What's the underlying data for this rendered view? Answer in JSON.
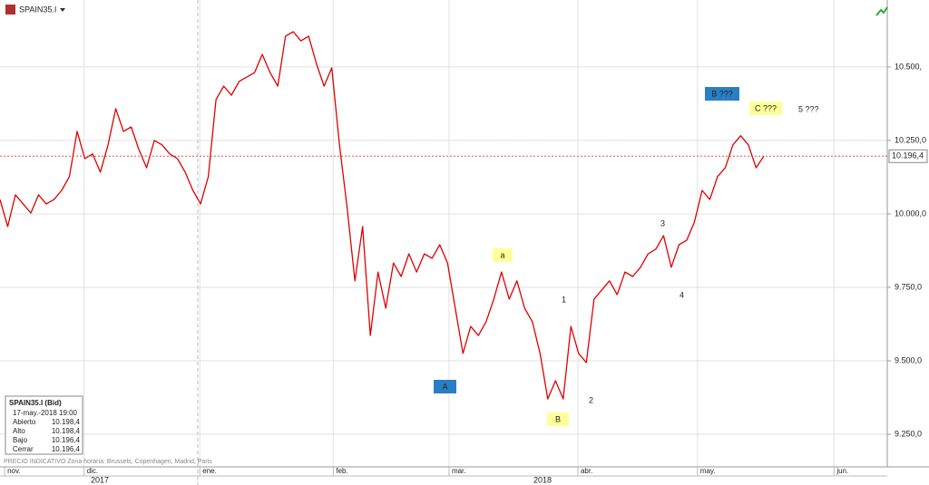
{
  "chart_data": {
    "type": "line",
    "instrument": "SPAIN35.I",
    "series": [
      {
        "name": "SPAIN35.I",
        "color": "#e00000",
        "values": [
          10049,
          9957,
          10065,
          10034,
          10003,
          10065,
          10034,
          10049,
          10080,
          10127,
          10281,
          10188,
          10204,
          10142,
          10235,
          10358,
          10281,
          10296,
          10219,
          10157,
          10250,
          10235,
          10204,
          10188,
          10142,
          10080,
          10034,
          10127,
          10389,
          10435,
          10404,
          10451,
          10466,
          10481,
          10543,
          10481,
          10435,
          10605,
          10620,
          10589,
          10605,
          10512,
          10435,
          10497,
          10235,
          10019,
          9772,
          9957,
          9586,
          9802,
          9679,
          9833,
          9787,
          9864,
          9802,
          9864,
          9849,
          9895,
          9833,
          9679,
          9525,
          9617,
          9586,
          9633,
          9710,
          9802,
          9710,
          9772,
          9679,
          9633,
          9525,
          9370,
          9432,
          9370,
          9617,
          9525,
          9494,
          9710,
          9741,
          9772,
          9725,
          9802,
          9787,
          9818,
          9864,
          9880,
          9926,
          9818,
          9895,
          9910,
          9972,
          10080,
          10049,
          10127,
          10157,
          10235,
          10266,
          10235,
          10157,
          10196.4
        ]
      }
    ],
    "xlim": [
      0,
      115
    ],
    "xticks": [
      {
        "value": 0.6,
        "label": "nov."
      },
      {
        "value": 10.9,
        "label": "dic."
      },
      {
        "value": 25.9,
        "label": "ene."
      },
      {
        "value": 43.2,
        "label": "feb."
      },
      {
        "value": 58.2,
        "label": "mar."
      },
      {
        "value": 74.9,
        "label": "abr."
      },
      {
        "value": 90.4,
        "label": "may."
      },
      {
        "value": 108.1,
        "label": "jun."
      }
    ],
    "years": [
      "2017",
      "2018"
    ],
    "ylim": [
      9139,
      10728
    ],
    "yticks": [
      {
        "value": 9250,
        "label": "9.250,0"
      },
      {
        "value": 9500,
        "label": "9.500,0"
      },
      {
        "value": 9750,
        "label": "9.750,0"
      },
      {
        "value": 10000,
        "label": "10.000,0"
      },
      {
        "value": 10250,
        "label": "10.250,0"
      },
      {
        "value": 10500,
        "label": "10.500,"
      }
    ],
    "current_price": {
      "value": 10196.4,
      "label": "10.196,4"
    },
    "grid": true,
    "annotations": [
      "B ???",
      "C ???",
      "5 ???",
      "a",
      "1",
      "3",
      "4",
      "A",
      "B",
      "2"
    ],
    "info": {
      "title": "SPAIN35.I (Bid)",
      "date": "17-may.-2018 19:00",
      "rows": [
        [
          "Abierto",
          "10.198,4"
        ],
        [
          "Alto",
          "10.198,4"
        ],
        [
          "Bajo",
          "10.196,4"
        ],
        [
          "Cerrar",
          "10.196,4"
        ]
      ]
    },
    "footer": "PRECIO INDICATIVO   Zona horaria: Brussels, Copenhagen, Madrid, Paris"
  }
}
